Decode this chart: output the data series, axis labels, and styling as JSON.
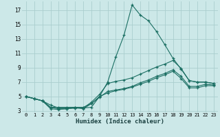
{
  "xlabel": "Humidex (Indice chaleur)",
  "bg_color": "#cce8e8",
  "grid_color": "#aacece",
  "line_color": "#1a6e62",
  "xlim": [
    -0.5,
    23.5
  ],
  "ylim": [
    2.8,
    18.2
  ],
  "yticks": [
    3,
    5,
    7,
    9,
    11,
    13,
    15,
    17
  ],
  "xticks": [
    0,
    1,
    2,
    3,
    4,
    5,
    6,
    7,
    8,
    9,
    10,
    11,
    12,
    13,
    14,
    15,
    16,
    17,
    18,
    19,
    20,
    21,
    22,
    23
  ],
  "series": [
    {
      "x": [
        0,
        1,
        2,
        3,
        4,
        5,
        6,
        7,
        8,
        9,
        10,
        11,
        12,
        13,
        14,
        15,
        16,
        17,
        18,
        19,
        20,
        21,
        22,
        23
      ],
      "y": [
        5.0,
        4.7,
        4.4,
        3.8,
        3.4,
        3.4,
        3.4,
        3.4,
        3.5,
        5.0,
        7.0,
        10.5,
        13.5,
        17.7,
        16.3,
        15.5,
        14.0,
        12.2,
        10.3,
        8.8,
        7.2,
        7.0,
        7.0,
        6.8
      ]
    },
    {
      "x": [
        0,
        1,
        2,
        3,
        4,
        5,
        6,
        7,
        8,
        9,
        10,
        11,
        12,
        13,
        14,
        15,
        16,
        17,
        18,
        19,
        20,
        21,
        22,
        23
      ],
      "y": [
        5.0,
        4.7,
        4.4,
        3.5,
        3.3,
        3.3,
        3.4,
        3.4,
        4.2,
        5.3,
        6.8,
        7.1,
        7.3,
        7.6,
        8.1,
        8.6,
        9.1,
        9.5,
        10.0,
        8.9,
        7.2,
        7.0,
        7.0,
        6.8
      ]
    },
    {
      "x": [
        0,
        1,
        2,
        3,
        4,
        5,
        6,
        7,
        8,
        9,
        10,
        11,
        12,
        13,
        14,
        15,
        16,
        17,
        18,
        19,
        20,
        21,
        22,
        23
      ],
      "y": [
        5.0,
        4.7,
        4.4,
        3.3,
        3.2,
        3.3,
        3.5,
        3.3,
        4.0,
        4.9,
        5.7,
        5.9,
        6.1,
        6.4,
        6.9,
        7.3,
        7.8,
        8.2,
        8.7,
        7.8,
        6.4,
        6.4,
        6.7,
        6.6
      ]
    },
    {
      "x": [
        0,
        1,
        2,
        3,
        4,
        5,
        6,
        7,
        8,
        9,
        10,
        11,
        12,
        13,
        14,
        15,
        16,
        17,
        18,
        19,
        20,
        21,
        22,
        23
      ],
      "y": [
        5.0,
        4.7,
        4.4,
        3.5,
        3.5,
        3.5,
        3.5,
        3.5,
        4.0,
        5.0,
        5.5,
        5.8,
        6.0,
        6.3,
        6.7,
        7.1,
        7.6,
        8.0,
        8.5,
        7.5,
        6.2,
        6.2,
        6.5,
        6.5
      ]
    }
  ]
}
